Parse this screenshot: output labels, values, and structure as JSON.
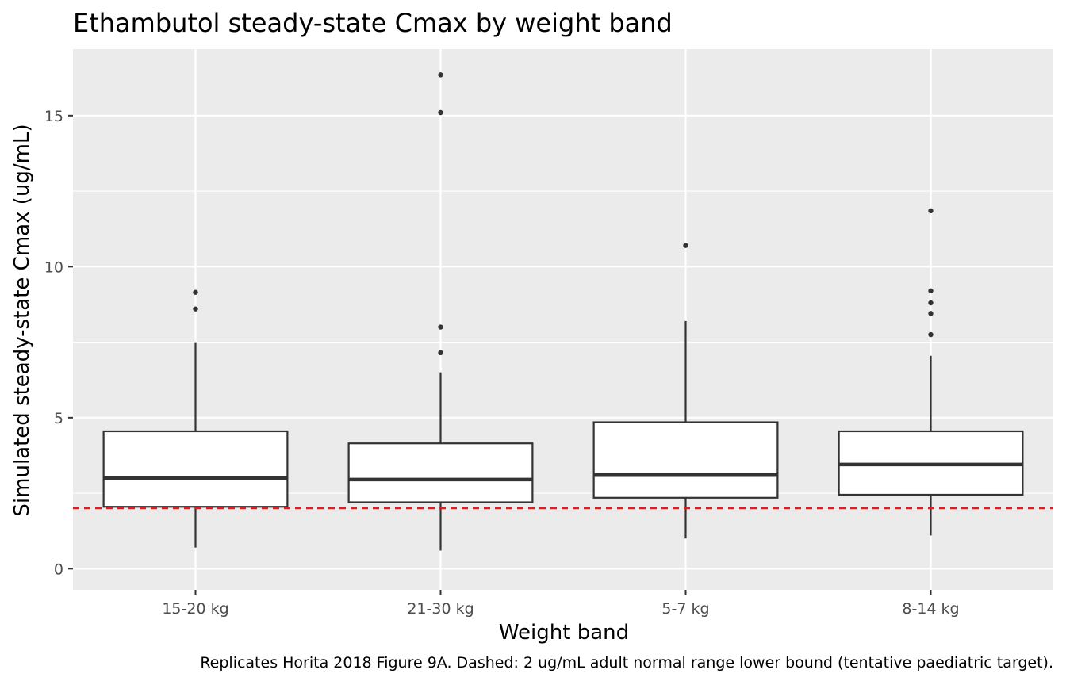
{
  "chart_data": {
    "type": "box",
    "title": "Ethambutol steady-state Cmax by weight band",
    "xlabel": "Weight band",
    "ylabel": "Simulated steady-state Cmax (ug/mL)",
    "caption": "Replicates Horita 2018 Figure 9A. Dashed: 2 ug/mL adult normal range lower bound (tentative paediatric target).",
    "ylim": [
      -0.7,
      17.2
    ],
    "yticks": [
      0,
      5,
      10,
      15
    ],
    "categories": [
      "15-20 kg",
      "21-30 kg",
      "5-7 kg",
      "8-14 kg"
    ],
    "boxes": [
      {
        "category": "15-20 kg",
        "whisker_low": 0.7,
        "q1": 2.05,
        "median": 3.0,
        "q3": 4.55,
        "whisker_high": 7.5,
        "outliers": [
          8.6,
          9.15
        ]
      },
      {
        "category": "21-30 kg",
        "whisker_low": 0.6,
        "q1": 2.2,
        "median": 2.95,
        "q3": 4.15,
        "whisker_high": 6.5,
        "outliers": [
          7.15,
          8.0,
          15.1,
          16.35
        ]
      },
      {
        "category": "5-7 kg",
        "whisker_low": 1.0,
        "q1": 2.35,
        "median": 3.1,
        "q3": 4.85,
        "whisker_high": 8.2,
        "outliers": [
          10.7
        ]
      },
      {
        "category": "8-14 kg",
        "whisker_low": 1.1,
        "q1": 2.45,
        "median": 3.45,
        "q3": 4.55,
        "whisker_high": 7.05,
        "outliers": [
          7.75,
          8.45,
          8.8,
          9.2,
          11.85
        ]
      }
    ],
    "reference_line": {
      "y": 2,
      "style": "dashed",
      "color": "#e41a1c"
    },
    "grid": true,
    "colors": {
      "panel": "#ebebeb",
      "grid": "#ffffff",
      "box_fill": "#ffffff",
      "box_stroke": "#333333"
    }
  }
}
